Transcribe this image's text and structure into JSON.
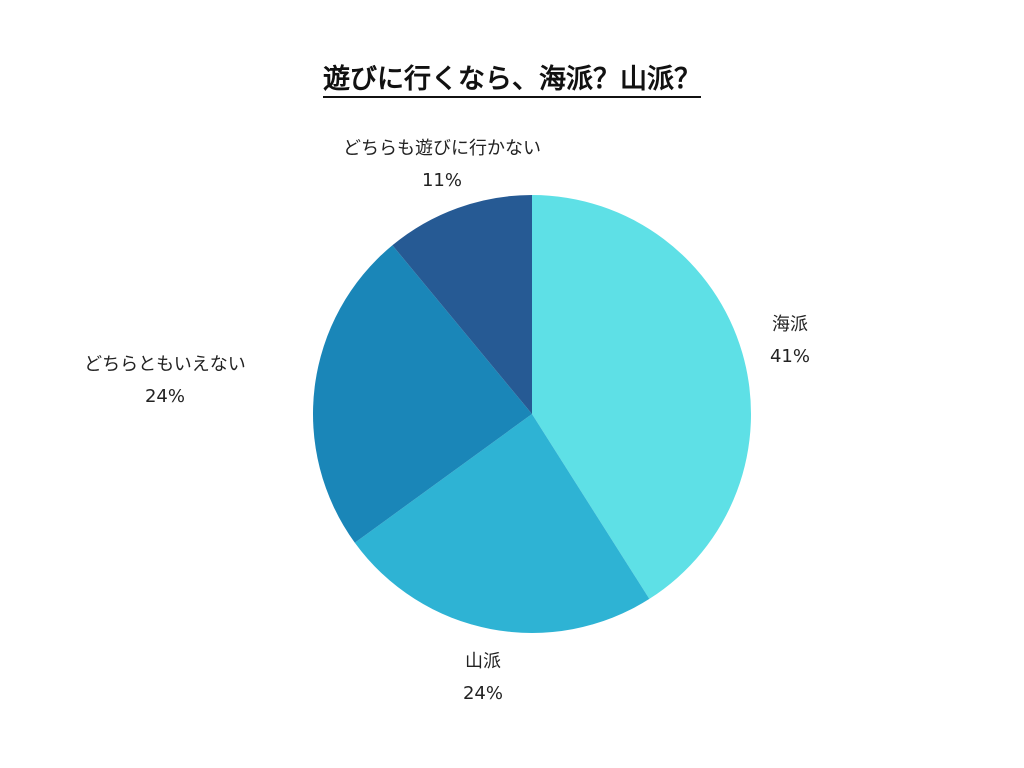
{
  "chart_data": {
    "type": "pie",
    "title": "遊びに行くなら、海派？山派？",
    "slices": [
      {
        "label": "海派",
        "value": 41,
        "value_label": "41%",
        "color": "#5ee0e6"
      },
      {
        "label": "山派",
        "value": 24,
        "value_label": "24%",
        "color": "#2eb3d4"
      },
      {
        "label": "どちらともいえない",
        "value": 24,
        "value_label": "24%",
        "color": "#1a86b8"
      },
      {
        "label": "どちらも遊びに行かない",
        "value": 11,
        "value_label": "11%",
        "color": "#265a94"
      }
    ],
    "start": "12 o'clock",
    "direction": "clockwise",
    "legend": "none"
  }
}
